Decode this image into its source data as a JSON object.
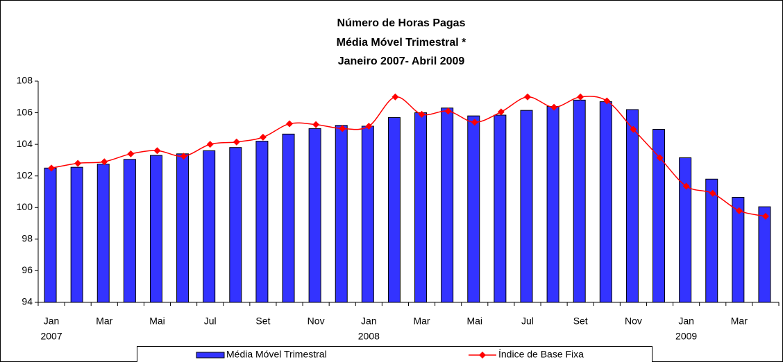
{
  "chart_data": {
    "type": "combo",
    "title": "Número de Horas Pagas",
    "subtitle": [
      "Média Móvel Trimestral *",
      "Janeiro 2007- Abril 2009"
    ],
    "categories": [
      "Jan",
      null,
      "Mar",
      null,
      "Mai",
      null,
      "Jul",
      null,
      "Set",
      null,
      "Nov",
      null,
      "Jan",
      null,
      "Mar",
      null,
      "Mai",
      null,
      "Jul",
      null,
      "Set",
      null,
      "Nov",
      null,
      "Jan",
      null,
      "Mar",
      null
    ],
    "year_labels": [
      "2007",
      null,
      null,
      null,
      null,
      null,
      null,
      null,
      null,
      null,
      null,
      null,
      "2008",
      null,
      null,
      null,
      null,
      null,
      null,
      null,
      null,
      null,
      null,
      null,
      "2009",
      null,
      null,
      null
    ],
    "series": [
      {
        "name": "Média Móvel Trimestral",
        "type": "bar",
        "color": "#3333ff",
        "values": [
          102.5,
          102.55,
          102.75,
          103.05,
          103.3,
          103.4,
          103.6,
          103.8,
          104.2,
          104.65,
          105.0,
          105.2,
          105.15,
          105.7,
          106.0,
          106.3,
          105.8,
          105.85,
          106.15,
          106.4,
          106.8,
          106.7,
          106.2,
          104.95,
          103.15,
          101.8,
          100.65,
          100.05
        ]
      },
      {
        "name": "Índice de Base Fixa",
        "type": "line",
        "color": "#ff0000",
        "values": [
          102.5,
          102.8,
          102.9,
          103.4,
          103.6,
          103.25,
          104.0,
          104.15,
          104.45,
          105.3,
          105.25,
          105.0,
          105.15,
          107.0,
          105.9,
          106.1,
          105.4,
          106.05,
          107.0,
          106.35,
          107.0,
          106.75,
          104.95,
          103.15,
          101.35,
          100.9,
          99.8,
          99.45
        ]
      }
    ],
    "ylim": [
      94,
      108
    ],
    "yticks": [
      94,
      96,
      98,
      100,
      102,
      104,
      106,
      108
    ],
    "grid": false,
    "legend": "bottom"
  }
}
